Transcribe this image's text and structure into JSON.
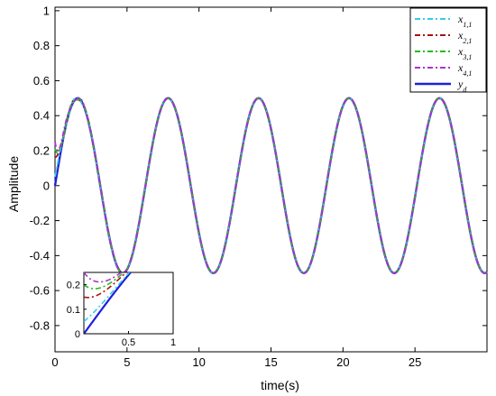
{
  "chart_data": {
    "type": "line",
    "xlabel": "time(s)",
    "ylabel": "Amplitude",
    "xlim": [
      0,
      30
    ],
    "ylim": [
      -0.95,
      1.02
    ],
    "x_ticks": [
      "0",
      "5",
      "10",
      "15",
      "20",
      "25"
    ],
    "y_ticks": [
      "1",
      "0.8",
      "0.6",
      "0.4",
      "0.2",
      "0",
      "-0.2",
      "-0.4",
      "-0.6",
      "-0.8"
    ],
    "x_tick_values": [
      0,
      5,
      10,
      15,
      20,
      25
    ],
    "y_tick_values": [
      1,
      0.8,
      0.6,
      0.4,
      0.2,
      0,
      -0.2,
      -0.4,
      -0.6,
      -0.8
    ],
    "grid": false,
    "legend_position": "top-right",
    "reference": {
      "amplitude": 0.5,
      "period": 6.283
    },
    "series": [
      {
        "name": "x_{1,1}",
        "legend_main": "x",
        "legend_sub": "1,1",
        "color": "#33ccee",
        "dash": "6,3,2,3",
        "initial": 0.05
      },
      {
        "name": "x_{2,1}",
        "legend_main": "x",
        "legend_sub": "2,1",
        "color": "#aa1111",
        "dash": "6,3,2,3",
        "initial": 0.15
      },
      {
        "name": "x_{3,1}",
        "legend_main": "x",
        "legend_sub": "3,1",
        "color": "#22bb22",
        "dash": "6,3,2,3",
        "initial": 0.2
      },
      {
        "name": "x_{4,1}",
        "legend_main": "x",
        "legend_sub": "4,1",
        "color": "#aa33cc",
        "dash": "6,3,2,3",
        "initial": 0.25
      },
      {
        "name": "y_d",
        "legend_main": "y",
        "legend_sub": "d",
        "color": "#1f1fdd",
        "dash": "",
        "initial": 0.0
      }
    ],
    "inset": {
      "xlim": [
        0,
        1
      ],
      "ylim": [
        0,
        0.25
      ],
      "x_ticks": [
        "0.5",
        "1"
      ],
      "x_tick_values": [
        0.5,
        1
      ],
      "y_ticks": [
        "0.2",
        "0.1",
        "0"
      ],
      "y_tick_values": [
        0.2,
        0.1,
        0
      ]
    }
  }
}
